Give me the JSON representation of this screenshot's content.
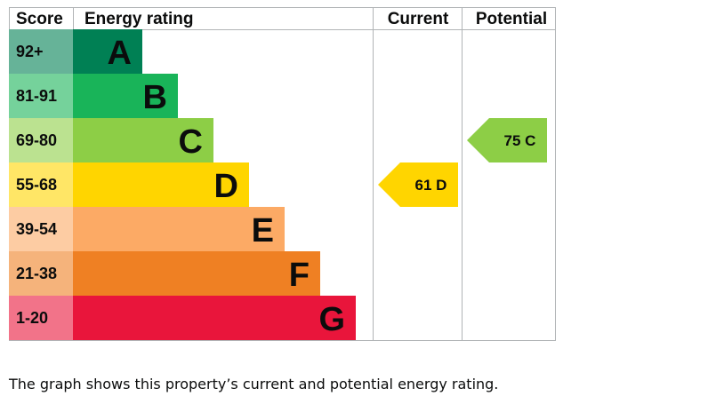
{
  "chart_data": {
    "type": "bar",
    "headers": {
      "score": "Score",
      "rating": "Energy rating",
      "current": "Current",
      "potential": "Potential"
    },
    "bands": [
      {
        "score": "92+",
        "letter": "A",
        "color": "#008054",
        "score_bg": "#66b398"
      },
      {
        "score": "81-91",
        "letter": "B",
        "color": "#19b459",
        "score_bg": "#75d29b"
      },
      {
        "score": "69-80",
        "letter": "C",
        "color": "#8dce46",
        "score_bg": "#bbe290"
      },
      {
        "score": "55-68",
        "letter": "D",
        "color": "#ffd500",
        "score_bg": "#ffe666"
      },
      {
        "score": "39-54",
        "letter": "E",
        "color": "#fcaa65",
        "score_bg": "#fdcca3"
      },
      {
        "score": "21-38",
        "letter": "F",
        "color": "#ef8023",
        "score_bg": "#f5b37b"
      },
      {
        "score": "1-20",
        "letter": "G",
        "color": "#e9153b",
        "score_bg": "#f27389"
      }
    ],
    "current": {
      "value": 61,
      "band": "D",
      "label": "61 D",
      "color": "#ffd500"
    },
    "potential": {
      "value": 75,
      "band": "C",
      "label": "75 C",
      "color": "#8dce46"
    }
  },
  "caption": "The graph shows this property’s current and potential energy rating."
}
